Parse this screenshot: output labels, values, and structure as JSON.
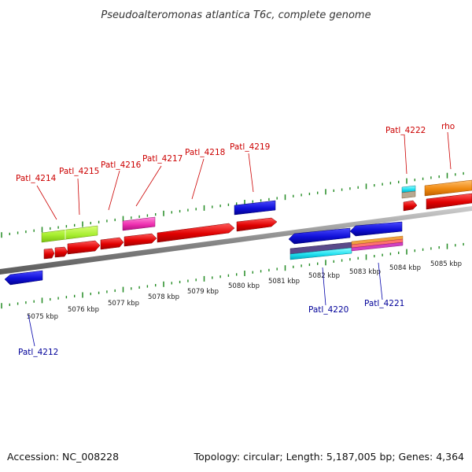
{
  "title": "Pseudoalteromonas atlantica T6c, complete genome",
  "footer": {
    "accession": "Accession: NC_008228",
    "summary": "Topology: circular; Length: 5,187,005 bp; Genes: 4,364"
  },
  "colors": {
    "forward_label": "#cc0000",
    "reverse_label": "#000099",
    "tick": "#228b22",
    "backbone": "#888888"
  },
  "tick_labels": [
    "5075 kbp",
    "5076 kbp",
    "5077 kbp",
    "5078 kbp",
    "5079 kbp",
    "5080 kbp",
    "5081 kbp",
    "5082 kbp",
    "5083 kbp",
    "5084 kbp",
    "5085 kbp"
  ],
  "gene_labels_forward": [
    "Patl_4214",
    "Patl_4215",
    "Patl_4216",
    "Patl_4217",
    "Patl_4218",
    "Patl_4219",
    "Patl_4222",
    "rho"
  ],
  "gene_labels_reverse": [
    "Patl_4212",
    "Patl_4220",
    "Patl_4221"
  ]
}
